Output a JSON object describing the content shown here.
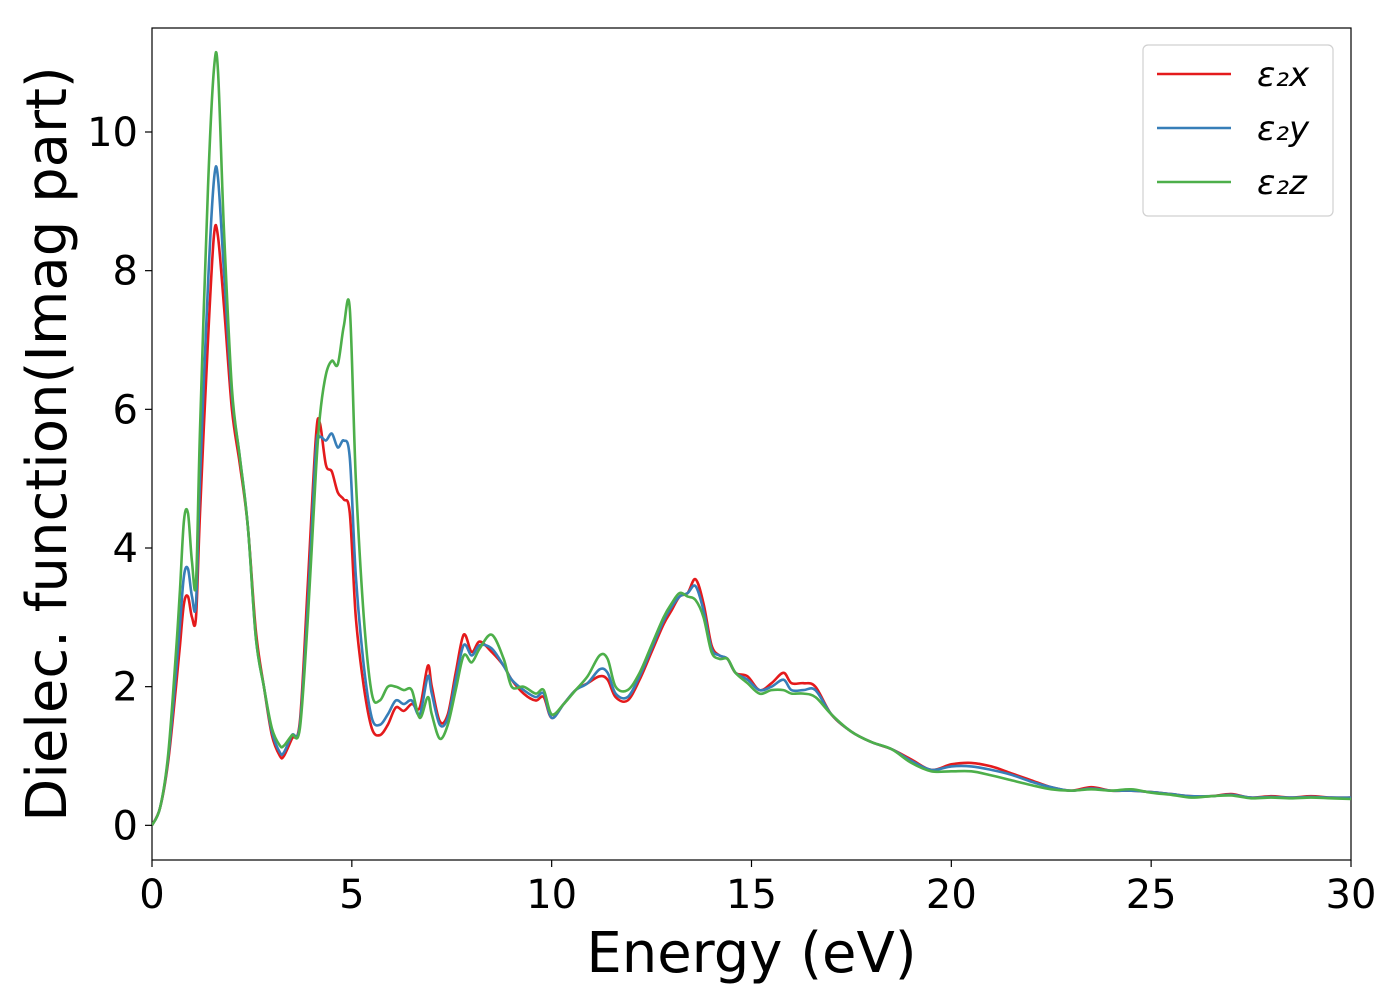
{
  "chart_data": {
    "type": "line",
    "xlabel": "Energy (eV)",
    "ylabel": "Dielec. function(Imag part)",
    "xlim": [
      0,
      30
    ],
    "ylim": [
      -0.5,
      11.5
    ],
    "xticks": [
      0,
      5,
      10,
      15,
      20,
      25,
      30
    ],
    "yticks": [
      0,
      2,
      4,
      6,
      8,
      10
    ],
    "grid": false,
    "legend": "top-right",
    "x": [
      0,
      0.2,
      0.4,
      0.6,
      0.7,
      0.8,
      0.9,
      1.0,
      1.1,
      1.2,
      1.4,
      1.55,
      1.65,
      1.8,
      2.0,
      2.2,
      2.4,
      2.6,
      2.8,
      3.0,
      3.2,
      3.3,
      3.5,
      3.7,
      3.9,
      4.1,
      4.2,
      4.35,
      4.5,
      4.65,
      4.8,
      4.95,
      5.1,
      5.3,
      5.5,
      5.7,
      5.9,
      6.1,
      6.3,
      6.5,
      6.7,
      6.9,
      7.0,
      7.2,
      7.4,
      7.6,
      7.8,
      8.0,
      8.2,
      8.5,
      8.8,
      9.0,
      9.3,
      9.6,
      9.8,
      10.0,
      10.3,
      10.6,
      10.9,
      11.2,
      11.4,
      11.6,
      11.9,
      12.2,
      12.5,
      12.8,
      13.0,
      13.2,
      13.4,
      13.6,
      13.8,
      14.0,
      14.2,
      14.4,
      14.6,
      14.9,
      15.2,
      15.5,
      15.8,
      16.0,
      16.3,
      16.6,
      17.0,
      17.5,
      18.0,
      18.5,
      19.0,
      19.5,
      20.0,
      20.5,
      21.0,
      21.5,
      22.0,
      22.5,
      23.0,
      23.5,
      24.0,
      24.5,
      25.0,
      25.5,
      26.0,
      26.5,
      27.0,
      27.5,
      28.0,
      28.5,
      29.0,
      29.5,
      30.0
    ],
    "series": [
      {
        "name": "ε₂x",
        "color": "#e41a1c",
        "values": [
          0.0,
          0.25,
          0.9,
          2.0,
          2.6,
          3.2,
          3.3,
          3.0,
          3.0,
          4.5,
          7.0,
          8.5,
          8.5,
          7.5,
          6.0,
          5.2,
          4.3,
          2.8,
          2.0,
          1.3,
          1.0,
          1.0,
          1.25,
          1.5,
          3.5,
          5.6,
          5.8,
          5.2,
          5.1,
          4.8,
          4.7,
          4.5,
          3.0,
          2.0,
          1.4,
          1.3,
          1.45,
          1.7,
          1.65,
          1.75,
          1.7,
          2.3,
          2.0,
          1.5,
          1.6,
          2.2,
          2.75,
          2.5,
          2.65,
          2.5,
          2.3,
          2.1,
          1.9,
          1.8,
          1.85,
          1.55,
          1.75,
          1.95,
          2.05,
          2.15,
          2.1,
          1.85,
          1.8,
          2.1,
          2.5,
          2.9,
          3.1,
          3.3,
          3.35,
          3.55,
          3.2,
          2.6,
          2.45,
          2.4,
          2.2,
          2.15,
          1.95,
          2.05,
          2.2,
          2.05,
          2.05,
          2.0,
          1.6,
          1.35,
          1.2,
          1.1,
          0.95,
          0.8,
          0.88,
          0.9,
          0.85,
          0.75,
          0.65,
          0.55,
          0.5,
          0.55,
          0.5,
          0.5,
          0.48,
          0.45,
          0.42,
          0.42,
          0.45,
          0.4,
          0.42,
          0.4,
          0.42,
          0.4,
          0.4
        ]
      },
      {
        "name": "ε₂y",
        "color": "#377eb8",
        "values": [
          0.0,
          0.25,
          0.95,
          2.2,
          2.9,
          3.6,
          3.7,
          3.3,
          3.2,
          5.0,
          7.8,
          9.3,
          9.35,
          8.0,
          6.2,
          5.3,
          4.3,
          2.7,
          2.0,
          1.35,
          1.05,
          1.05,
          1.3,
          1.45,
          3.2,
          5.4,
          5.6,
          5.55,
          5.65,
          5.45,
          5.55,
          5.3,
          3.6,
          2.3,
          1.55,
          1.45,
          1.6,
          1.8,
          1.75,
          1.8,
          1.6,
          2.15,
          1.9,
          1.45,
          1.55,
          2.1,
          2.6,
          2.45,
          2.6,
          2.55,
          2.3,
          2.1,
          1.95,
          1.85,
          1.9,
          1.55,
          1.75,
          1.95,
          2.05,
          2.25,
          2.2,
          1.9,
          1.85,
          2.15,
          2.55,
          2.95,
          3.15,
          3.3,
          3.35,
          3.45,
          3.1,
          2.55,
          2.45,
          2.4,
          2.2,
          2.1,
          1.95,
          2.0,
          2.1,
          1.95,
          1.95,
          1.95,
          1.6,
          1.35,
          1.2,
          1.1,
          0.93,
          0.8,
          0.85,
          0.85,
          0.8,
          0.73,
          0.63,
          0.55,
          0.5,
          0.53,
          0.5,
          0.5,
          0.48,
          0.45,
          0.42,
          0.42,
          0.44,
          0.4,
          0.41,
          0.4,
          0.41,
          0.4,
          0.4
        ]
      },
      {
        "name": "ε₂z",
        "color": "#4daf4a",
        "values": [
          0.0,
          0.25,
          1.0,
          2.5,
          3.4,
          4.4,
          4.5,
          3.8,
          3.5,
          5.7,
          9.2,
          10.9,
          10.9,
          8.6,
          6.3,
          5.3,
          4.3,
          2.7,
          2.0,
          1.4,
          1.15,
          1.15,
          1.3,
          1.4,
          3.0,
          5.1,
          5.9,
          6.5,
          6.7,
          6.65,
          7.2,
          7.45,
          5.0,
          3.0,
          1.9,
          1.8,
          2.0,
          2.0,
          1.95,
          1.95,
          1.55,
          1.85,
          1.6,
          1.25,
          1.45,
          1.95,
          2.45,
          2.35,
          2.55,
          2.75,
          2.4,
          2.0,
          2.0,
          1.9,
          1.95,
          1.6,
          1.75,
          1.95,
          2.15,
          2.45,
          2.4,
          2.0,
          1.95,
          2.2,
          2.6,
          3.0,
          3.2,
          3.35,
          3.3,
          3.25,
          3.0,
          2.5,
          2.4,
          2.4,
          2.2,
          2.05,
          1.9,
          1.95,
          1.95,
          1.9,
          1.9,
          1.85,
          1.6,
          1.35,
          1.2,
          1.1,
          0.9,
          0.78,
          0.78,
          0.78,
          0.72,
          0.65,
          0.58,
          0.52,
          0.5,
          0.52,
          0.5,
          0.52,
          0.47,
          0.44,
          0.4,
          0.42,
          0.43,
          0.39,
          0.4,
          0.39,
          0.4,
          0.39,
          0.38
        ]
      }
    ]
  }
}
